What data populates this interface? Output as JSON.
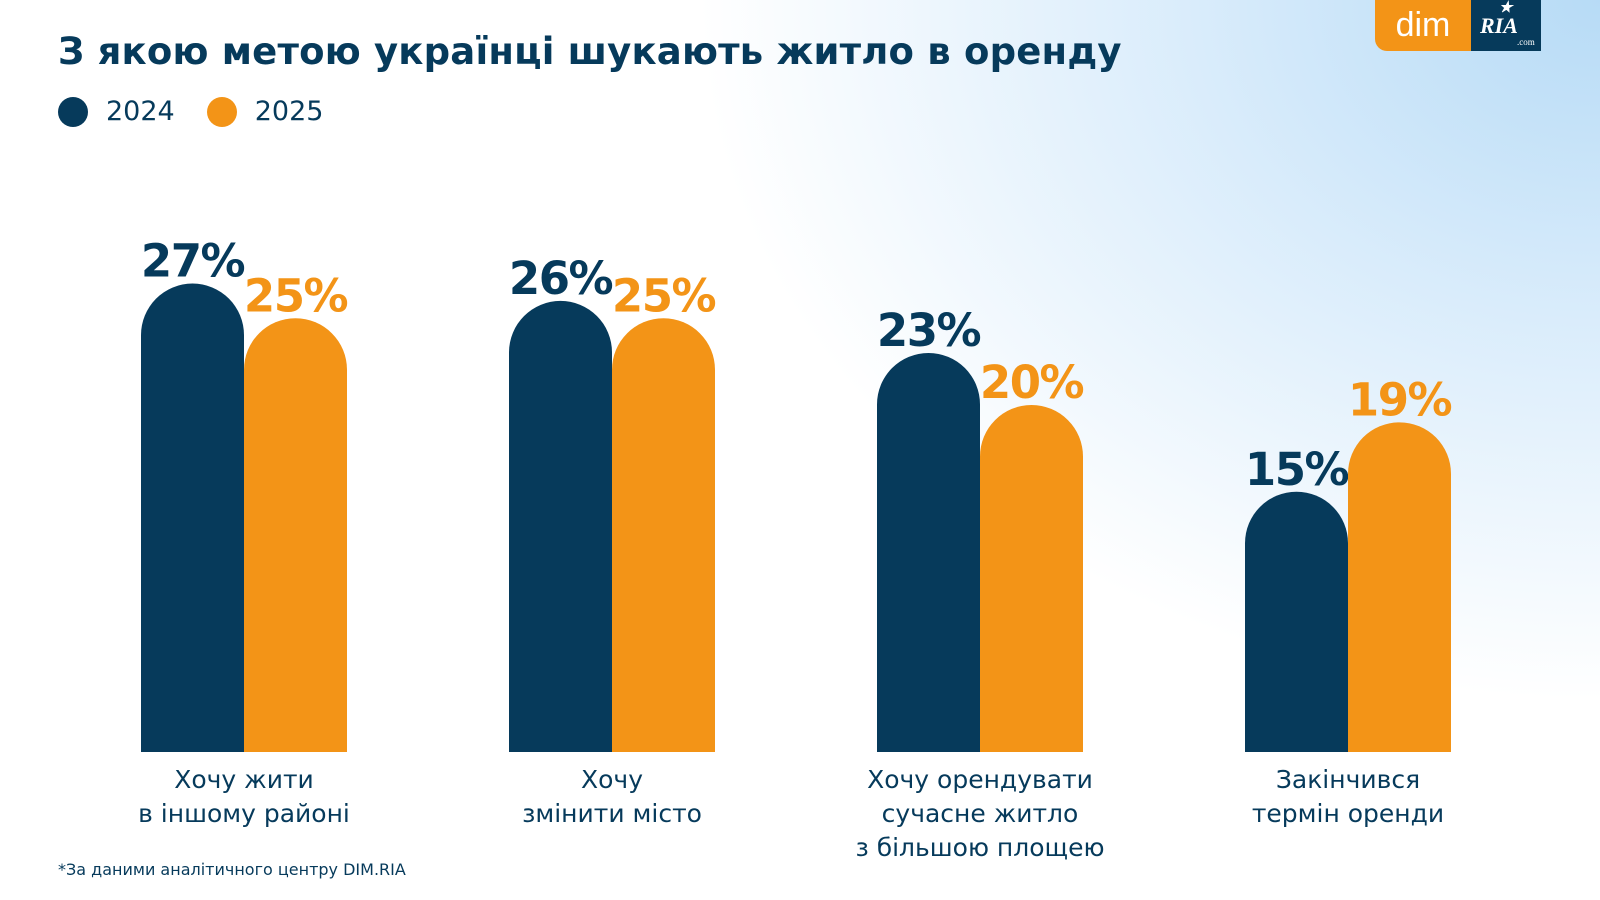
{
  "title": "З якою метою українці шукають житло в оренду",
  "footnote": "*За даними аналітичного центру DIM.RIA",
  "logo": {
    "dim": "dim",
    "ria": "RIA",
    "ria_sub": ".com"
  },
  "colors": {
    "series_2024": "#063a5b",
    "series_2025": "#f39417",
    "text": "#063a5b"
  },
  "chart_data": {
    "type": "bar",
    "title": "З якою метою українці шукають житло в оренду",
    "categories": [
      [
        "Хочу жити",
        "в іншому районі"
      ],
      [
        "Хочу",
        "змінити місто"
      ],
      [
        "Хочу орендувати",
        "сучасне житло",
        "з більшою площею"
      ],
      [
        "Закінчився",
        "термін оренди"
      ]
    ],
    "series": [
      {
        "name": "2024",
        "values": [
          27,
          26,
          23,
          15
        ],
        "labels": [
          "27%",
          "26%",
          "23%",
          "15%"
        ],
        "color": "#063a5b"
      },
      {
        "name": "2025",
        "values": [
          25,
          25,
          20,
          19
        ],
        "labels": [
          "25%",
          "25%",
          "20%",
          "19%"
        ],
        "color": "#f39417"
      }
    ],
    "unit": "%",
    "legend_position": "top-left",
    "grid": false
  }
}
